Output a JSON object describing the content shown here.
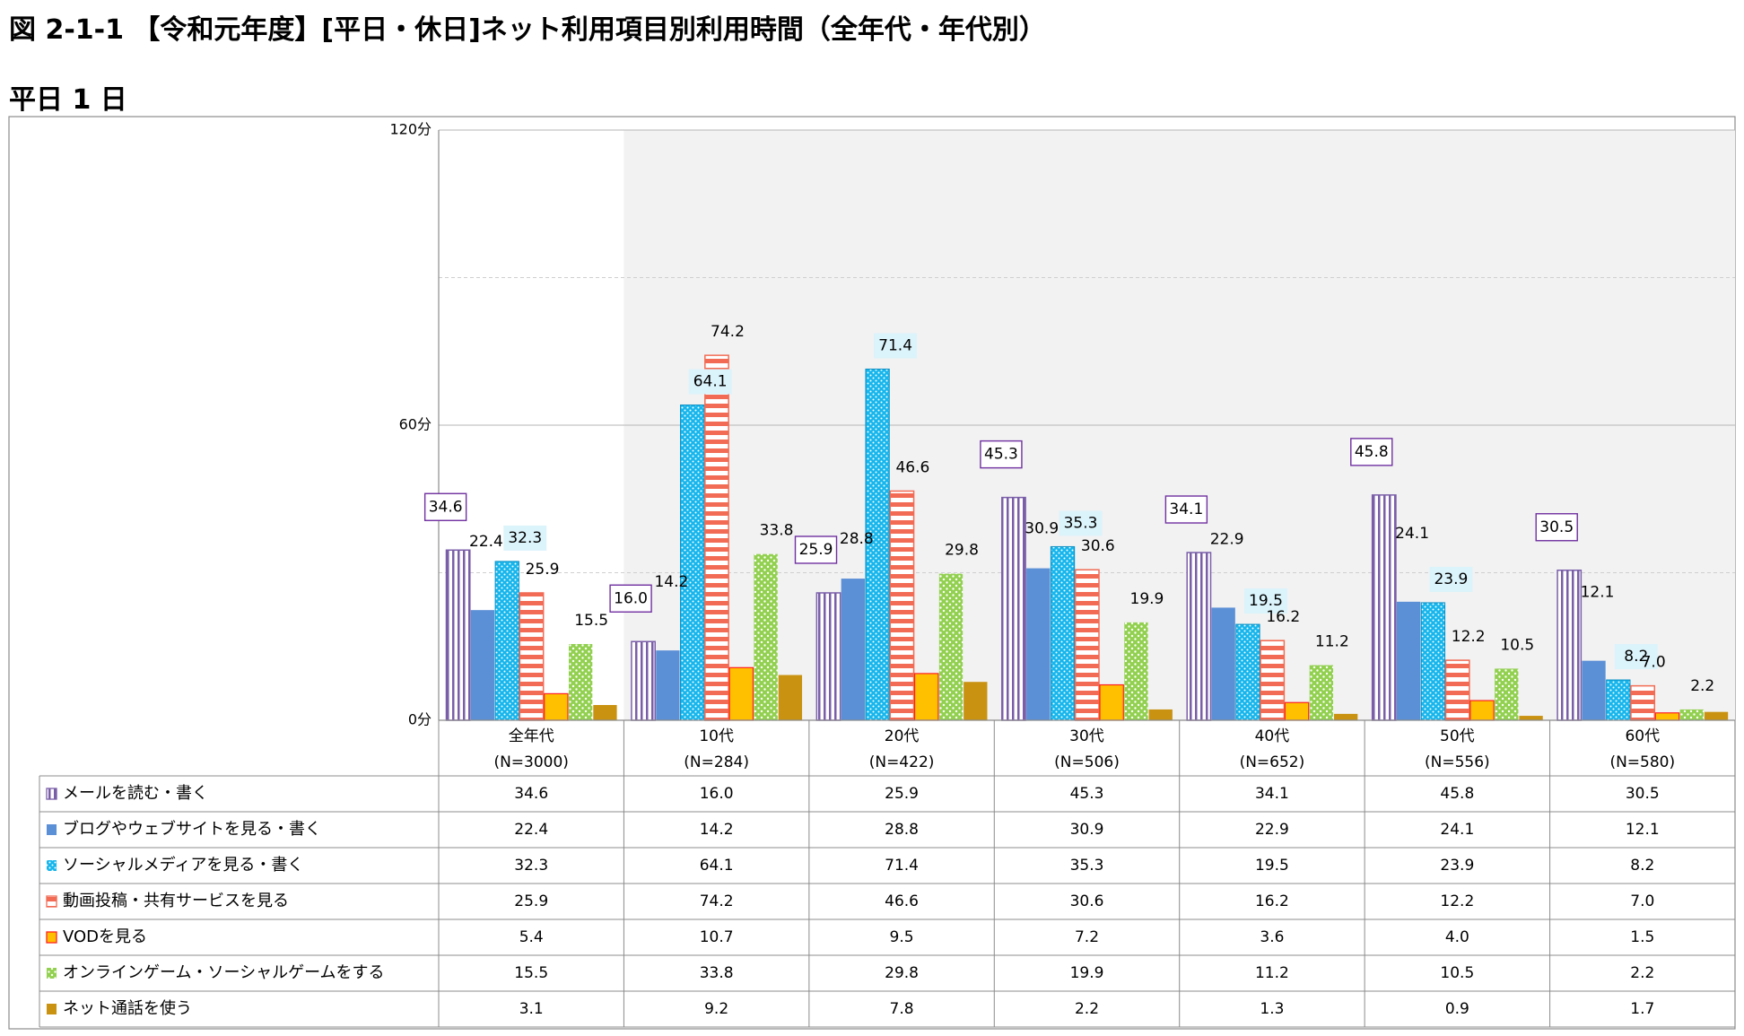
{
  "title": "図 2-1-1 【令和元年度】[平日・休日]ネット利用項目別利用時間（全年代・年代別）",
  "subtitle": "平日 1 日",
  "chart_data": {
    "type": "bar",
    "y_ticks": [
      "0分",
      "60分",
      "120分"
    ],
    "ylim": [
      0,
      120
    ],
    "grid": true,
    "legend": "table-left",
    "categories": [
      {
        "name": "全年代",
        "n": "(N=3000)"
      },
      {
        "name": "10代",
        "n": "(N=284)"
      },
      {
        "name": "20代",
        "n": "(N=422)"
      },
      {
        "name": "30代",
        "n": "(N=506)"
      },
      {
        "name": "40代",
        "n": "(N=652)"
      },
      {
        "name": "50代",
        "n": "(N=556)"
      },
      {
        "name": "60代",
        "n": "(N=580)"
      }
    ],
    "series": [
      {
        "name": "メールを読む・書く",
        "values": [
          34.6,
          16.0,
          25.9,
          45.3,
          34.1,
          45.8,
          30.5
        ],
        "labels": [
          "34.6",
          "16.0",
          "25.9",
          "45.3",
          "34.1",
          "45.8",
          "30.5"
        ],
        "color": "#7a5fa8",
        "pattern": "vstripe",
        "label_box": "boxed"
      },
      {
        "name": "ブログやウェブサイトを見る・書く",
        "values": [
          22.4,
          14.2,
          28.8,
          30.9,
          22.9,
          24.1,
          12.1
        ],
        "labels": [
          "22.4",
          "14.2",
          "28.8",
          "30.9",
          "22.9",
          "24.1",
          "12.1"
        ],
        "color": "#5b8fd6",
        "pattern": "solid"
      },
      {
        "name": "ソーシャルメディアを見る・書く",
        "values": [
          32.3,
          64.1,
          71.4,
          35.3,
          19.5,
          23.9,
          8.2
        ],
        "labels": [
          "32.3",
          "64.1",
          "71.4",
          "35.3",
          "19.5",
          "23.9",
          "8.2"
        ],
        "color": "#16b6ec",
        "pattern": "dots-blue",
        "label_box": "shaded"
      },
      {
        "name": "動画投稿・共有サービスを見る",
        "values": [
          25.9,
          74.2,
          46.6,
          30.6,
          16.2,
          12.2,
          7.0
        ],
        "labels": [
          "25.9",
          "74.2",
          "46.6",
          "30.6",
          "16.2",
          "12.2",
          "7.0"
        ],
        "color": "#f26b54",
        "pattern": "hstripe"
      },
      {
        "name": "VODを見る",
        "values": [
          5.4,
          10.7,
          9.5,
          7.2,
          3.6,
          4.0,
          1.5
        ],
        "labels": [
          "5.4",
          "10.7",
          "9.5",
          "7.2",
          "3.6",
          "4.0",
          "1.5"
        ],
        "color": "#ffc000",
        "pattern": "vod"
      },
      {
        "name": "オンラインゲーム・ソーシャルゲームをする",
        "values": [
          15.5,
          33.8,
          29.8,
          19.9,
          11.2,
          10.5,
          2.2
        ],
        "labels": [
          "15.5",
          "33.8",
          "29.8",
          "19.9",
          "11.2",
          "10.5",
          "2.2"
        ],
        "color": "#92d050",
        "pattern": "dots-green"
      },
      {
        "name": "ネット通話を使う",
        "values": [
          3.1,
          9.2,
          7.8,
          2.2,
          1.3,
          0.9,
          1.7
        ],
        "labels": [
          "3.1",
          "9.2",
          "7.8",
          "2.2",
          "1.3",
          "0.9",
          "1.7"
        ],
        "color": "#c99210",
        "pattern": "solid"
      }
    ]
  }
}
